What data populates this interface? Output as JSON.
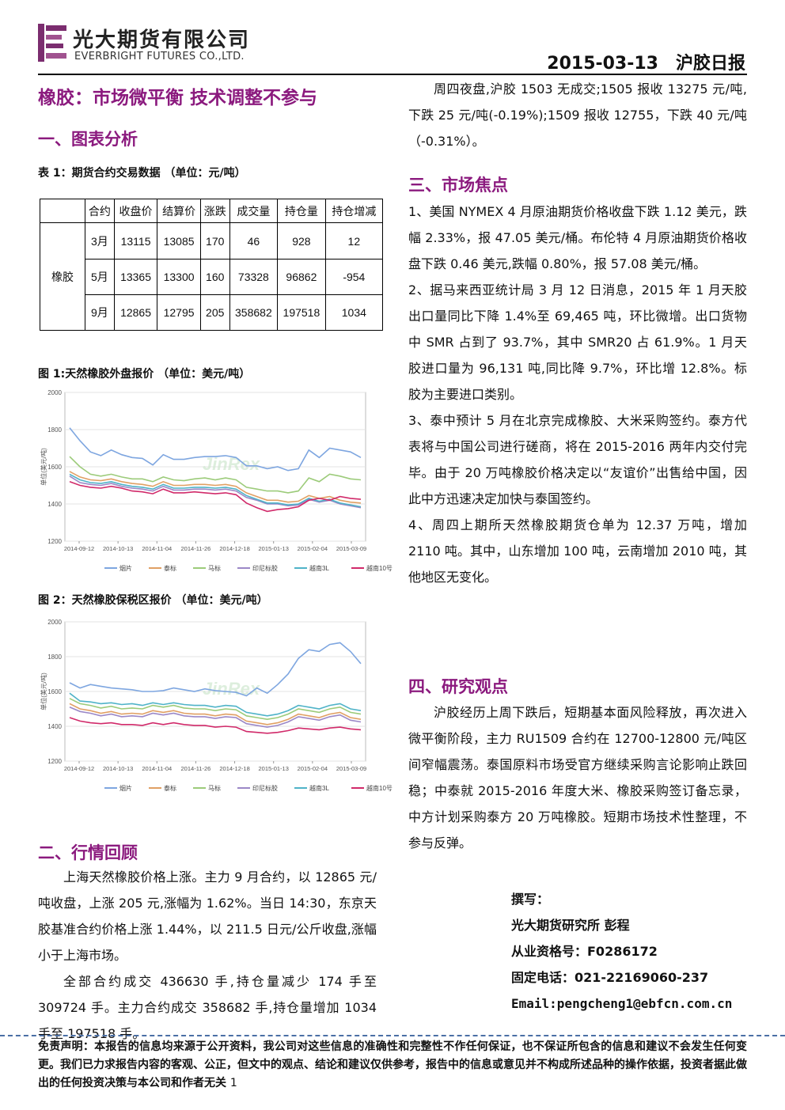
{
  "header": {
    "company_cn": "光大期货有限公司",
    "company_en": "EVERBRIGHT FUTURES CO.,LTD.",
    "date_report": "2015-03-13　沪胶日报"
  },
  "title": "橡胶：市场微平衡 技术调整不参与",
  "sections": {
    "s1": "一、图表分析",
    "s2": "二、行情回顾",
    "s3": "三、市场焦点",
    "s4": "四、研究观点"
  },
  "table": {
    "caption": "表 1：期货合约交易数据 （单位：元/吨）",
    "headers": [
      "合约",
      "收盘价",
      "结算价",
      "涨跌",
      "成交量",
      "持仓量",
      "持仓增减"
    ],
    "group": "橡胶",
    "rows": [
      [
        "3月",
        "13115",
        "13085",
        "170",
        "46",
        "928",
        "12"
      ],
      [
        "5月",
        "13365",
        "13300",
        "160",
        "73328",
        "96862",
        "-954"
      ],
      [
        "9月",
        "12865",
        "12795",
        "205",
        "358682",
        "197518",
        "1034"
      ]
    ]
  },
  "fig1_caption": "图 1:天然橡胶外盘报价 （单位：美元/吨）",
  "fig2_caption": "图 2：天然橡胶保税区报价 （单位：美元/吨）",
  "chart_data": [
    {
      "type": "line",
      "title": "",
      "ylabel": "单位(美元/吨)",
      "ylim": [
        1200,
        2000
      ],
      "yticks": [
        "2000",
        "1800",
        "1600",
        "1400",
        "1200"
      ],
      "xticks": [
        "2014-09-12",
        "2014-10-13",
        "2014-11-04",
        "2014-11-26",
        "2014-12-18",
        "2015-01-13",
        "2015-02-04",
        "2015-03-09"
      ],
      "grid": true,
      "legend_position": "bottom",
      "watermark": "JinRex",
      "series": [
        {
          "name": "烟片",
          "color": "#7ea6e0",
          "values": [
            1810,
            1740,
            1680,
            1660,
            1690,
            1665,
            1650,
            1645,
            1610,
            1665,
            1640,
            1640,
            1650,
            1655,
            1655,
            1660,
            1650,
            1605,
            1605,
            1590,
            1600,
            1580,
            1590,
            1690,
            1650,
            1700,
            1690,
            1680,
            1650
          ]
        },
        {
          "name": "泰标",
          "color": "#e0a064",
          "values": [
            1575,
            1545,
            1530,
            1525,
            1535,
            1520,
            1510,
            1505,
            1495,
            1520,
            1500,
            1500,
            1505,
            1505,
            1500,
            1505,
            1495,
            1460,
            1440,
            1420,
            1420,
            1410,
            1415,
            1445,
            1430,
            1440,
            1420,
            1410,
            1405
          ]
        },
        {
          "name": "马标",
          "color": "#9ccb7a",
          "values": [
            1655,
            1600,
            1560,
            1550,
            1560,
            1545,
            1535,
            1535,
            1520,
            1545,
            1530,
            1525,
            1535,
            1540,
            1530,
            1540,
            1530,
            1490,
            1480,
            1470,
            1470,
            1460,
            1470,
            1540,
            1520,
            1560,
            1550,
            1535,
            1530
          ]
        },
        {
          "name": "印尼标胶",
          "color": "#9b88c7",
          "values": [
            1550,
            1515,
            1505,
            1500,
            1510,
            1495,
            1485,
            1480,
            1470,
            1495,
            1475,
            1475,
            1480,
            1480,
            1475,
            1480,
            1470,
            1435,
            1420,
            1400,
            1400,
            1390,
            1395,
            1425,
            1410,
            1420,
            1400,
            1390,
            1380
          ]
        },
        {
          "name": "越南3L",
          "color": "#4fb3c8",
          "values": [
            1560,
            1530,
            1515,
            1510,
            1520,
            1505,
            1495,
            1490,
            1480,
            1505,
            1485,
            1485,
            1490,
            1490,
            1485,
            1490,
            1480,
            1445,
            1425,
            1405,
            1405,
            1395,
            1400,
            1430,
            1415,
            1425,
            1405,
            1395,
            1385
          ]
        },
        {
          "name": "越南10号",
          "color": "#d12a6a",
          "values": [
            1520,
            1500,
            1490,
            1485,
            1495,
            1485,
            1470,
            1465,
            1455,
            1480,
            1460,
            1460,
            1465,
            1460,
            1455,
            1460,
            1450,
            1405,
            1380,
            1360,
            1370,
            1375,
            1385,
            1420,
            1430,
            1420,
            1440,
            1430,
            1425
          ]
        }
      ]
    },
    {
      "type": "line",
      "title": "",
      "ylabel": "单位(美元/吨)",
      "ylim": [
        1200,
        2000
      ],
      "yticks": [
        "2000",
        "1800",
        "1600",
        "1400",
        "1200"
      ],
      "xticks": [
        "2014-09-12",
        "2014-10-13",
        "2014-11-04",
        "2014-11-26",
        "2014-12-18",
        "2015-01-13",
        "2015-02-04",
        "2015-03-09"
      ],
      "grid": true,
      "legend_position": "bottom",
      "watermark": "JinRex",
      "series": [
        {
          "name": "烟片",
          "color": "#7ea6e0",
          "values": [
            1650,
            1620,
            1640,
            1630,
            1620,
            1615,
            1610,
            1600,
            1600,
            1605,
            1620,
            1610,
            1600,
            1615,
            1605,
            1600,
            1595,
            1575,
            1620,
            1590,
            1640,
            1700,
            1790,
            1840,
            1830,
            1870,
            1880,
            1830,
            1760
          ]
        },
        {
          "name": "泰标",
          "color": "#e0a064",
          "values": [
            1530,
            1500,
            1490,
            1475,
            1485,
            1470,
            1475,
            1470,
            1490,
            1480,
            1490,
            1475,
            1470,
            1470,
            1460,
            1470,
            1465,
            1430,
            1420,
            1410,
            1420,
            1440,
            1470,
            1460,
            1450,
            1470,
            1480,
            1450,
            1440
          ]
        },
        {
          "name": "马标",
          "color": "#9ccb7a",
          "values": [
            1560,
            1530,
            1520,
            1505,
            1515,
            1500,
            1505,
            1500,
            1520,
            1510,
            1520,
            1505,
            1500,
            1500,
            1490,
            1500,
            1495,
            1460,
            1450,
            1440,
            1450,
            1470,
            1500,
            1490,
            1480,
            1500,
            1510,
            1480,
            1470
          ]
        },
        {
          "name": "印尼标胶",
          "color": "#9b88c7",
          "values": [
            1510,
            1485,
            1475,
            1460,
            1470,
            1455,
            1460,
            1455,
            1475,
            1465,
            1475,
            1460,
            1455,
            1455,
            1445,
            1455,
            1450,
            1415,
            1405,
            1395,
            1405,
            1425,
            1455,
            1445,
            1435,
            1455,
            1465,
            1435,
            1425
          ]
        },
        {
          "name": "越南3L",
          "color": "#4fb3c8",
          "values": [
            1590,
            1545,
            1540,
            1530,
            1535,
            1525,
            1530,
            1520,
            1535,
            1525,
            1535,
            1525,
            1520,
            1520,
            1510,
            1520,
            1515,
            1480,
            1470,
            1460,
            1470,
            1490,
            1520,
            1510,
            1500,
            1520,
            1530,
            1500,
            1490
          ]
        },
        {
          "name": "越南10号",
          "color": "#d12a6a",
          "values": [
            1450,
            1430,
            1420,
            1415,
            1420,
            1410,
            1410,
            1405,
            1420,
            1410,
            1420,
            1410,
            1405,
            1405,
            1395,
            1400,
            1395,
            1370,
            1365,
            1360,
            1365,
            1375,
            1390,
            1385,
            1380,
            1390,
            1395,
            1385,
            1380
          ]
        }
      ]
    }
  ],
  "review": {
    "p1": "上海天然橡胶价格上涨。主力 9 月合约，以 12865 元/吨收盘，上涨 205 元,涨幅为 1.62%。当日 14:30，东京天胶基准合约价格上涨 1.44%，以 211.5 日元/公斤收盘,涨幅小于上海市场。",
    "p2": "全部合约成交 436630 手,持仓量减少 174 手至 309724 手。主力合约成交 358682 手,持仓量增加 1034 手至 197518 手。"
  },
  "night_session": "周四夜盘,沪胶 1503 无成交;1505 报收 13275 元/吨,下跌 25 元/吨(-0.19%);1509 报收 12755，下跌 40 元/吨（-0.31%）。",
  "focus": [
    "1、美国 NYMEX 4 月原油期货价格收盘下跌 1.12 美元，跌幅 2.33%，报 47.05 美元/桶。布伦特 4 月原油期货价格收盘下跌 0.46 美元,跌幅 0.80%，报 57.08 美元/桶。",
    "2、据马来西亚统计局 3 月 12 日消息，2015 年 1 月天胶出口量同比下降 1.4%至 69,465 吨，环比微增。出口货物中 SMR 占到了 93.7%，其中 SMR20 占 61.9%。1 月天胶进口量为 96,131 吨,同比降 9.7%，环比增 12.8%。标胶为主要进口类别。",
    "3、泰中预计 5 月在北京完成橡胶、大米采购签约。泰方代表将与中国公司进行磋商，将在 2015-2016 两年内交付完毕。由于 20 万吨橡胶价格决定以“友谊价”出售给中国，因此中方迅速决定加快与泰国签约。",
    "4、周四上期所天然橡胶期货仓单为 12.37 万吨，增加 2110 吨。其中，山东增加 100 吨，云南增加 2010 吨，其他地区无变化。"
  ],
  "opinion": "沪胶经历上周下跌后，短期基本面风险释放，再次进入微平衡阶段，主力 RU1509 合约在 12700-12800 元/吨区间窄幅震荡。泰国原料市场受官方继续采购言论影响止跌回稳；中泰就 2015-2016 年度大米、橡胶采购签订备忘录，中方计划采购泰方 20 万吨橡胶。短期市场技术性整理，不参与反弹。",
  "author": {
    "label": "撰写：",
    "name": "光大期货研究所 彭程",
    "license": "从业资格号：F0286172",
    "phone": "固定电话：021-22169060-237",
    "email": "Email:pengcheng1@ebfcn.com.cn"
  },
  "disclaimer": "免责声明：本报告的信息均来源于公开资料，我公司对这些信息的准确性和完整性不作任何保证，也不保证所包含的信息和建议不会发生任何变更。我们已力求报告内容的客观、公正，但文中的观点、结论和建议仅供参考，报告中的信息或意见并不构成所述品种的操作依据，投资者据此做出的任何投资决策与本公司和作者无关",
  "page_number": "1"
}
